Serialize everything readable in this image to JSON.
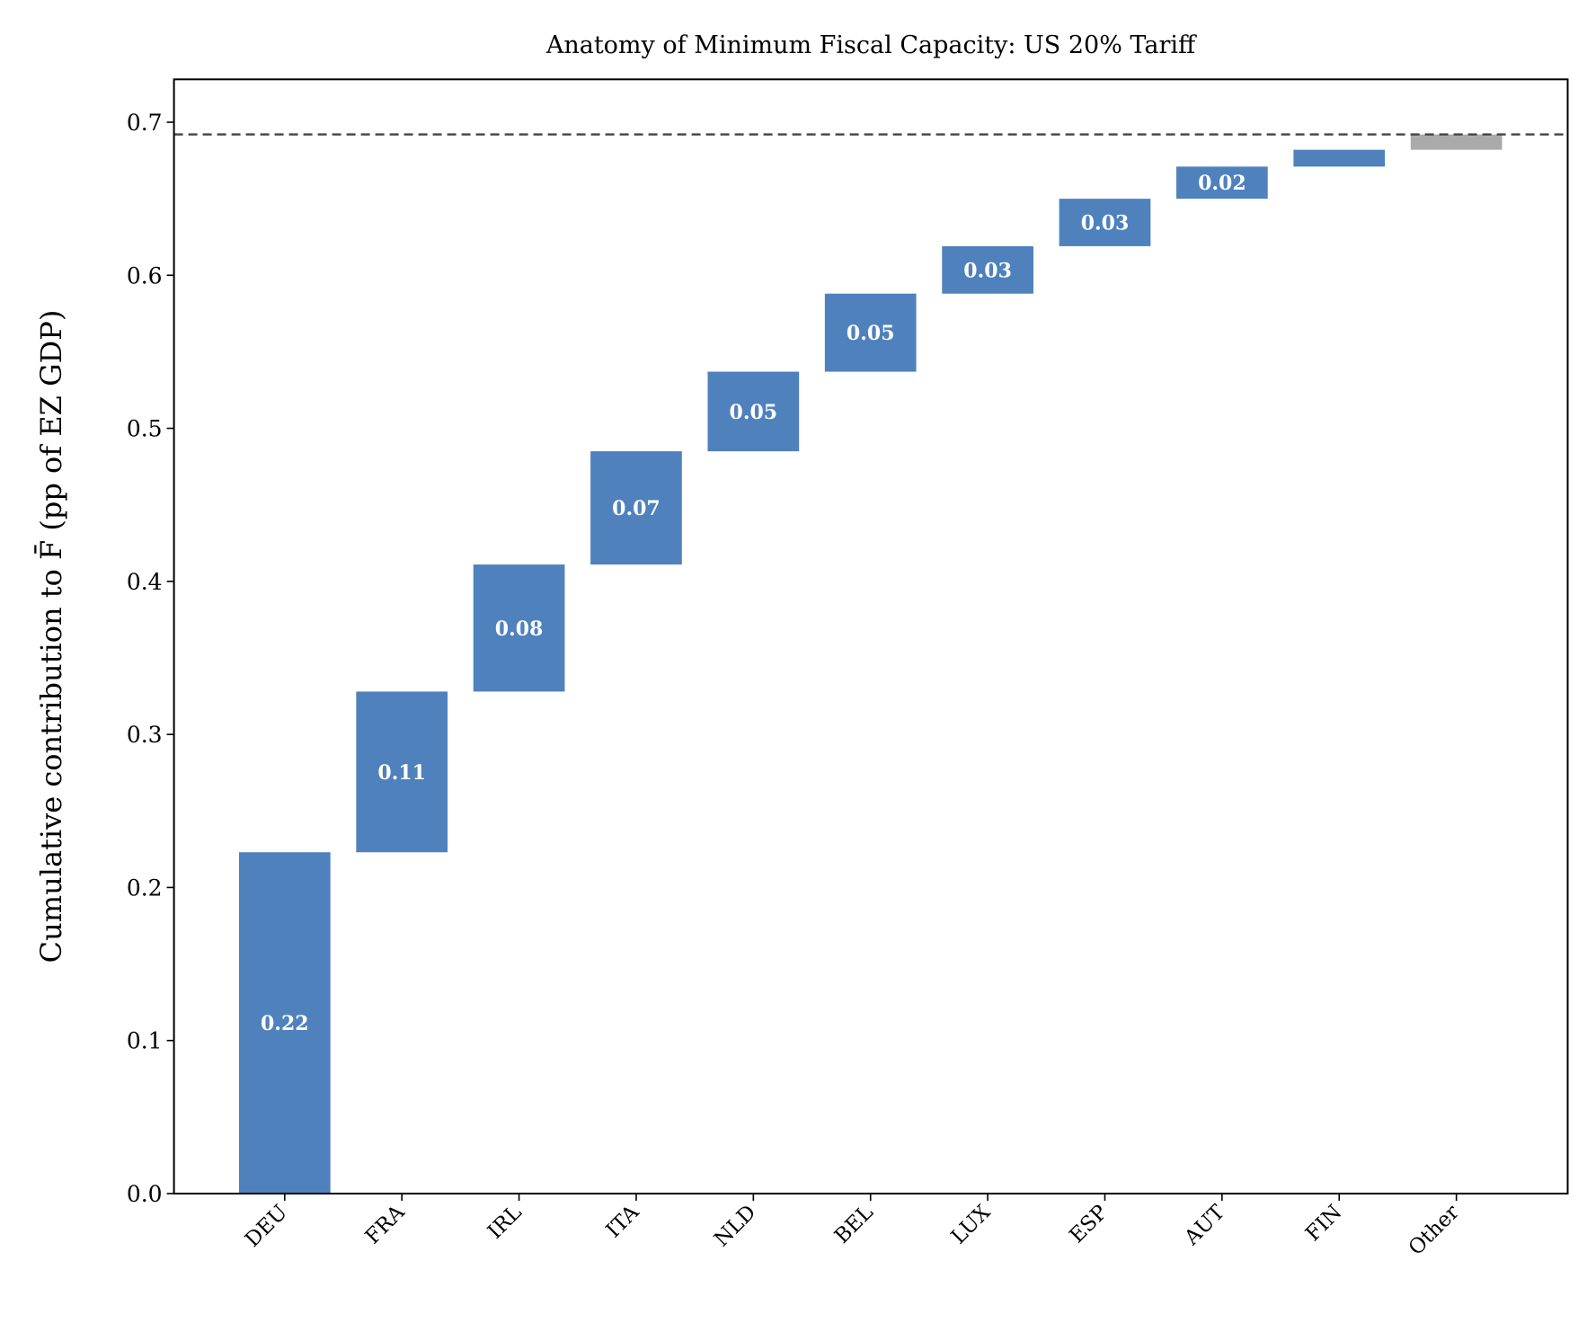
{
  "chart_data": {
    "type": "bar",
    "subtype": "waterfall",
    "title": "Anatomy of Minimum Fiscal Capacity: US 20% Tariff",
    "xlabel": "",
    "ylabel": "Cumulative contribution to F̄ (pp of EZ GDP)",
    "categories": [
      "DEU",
      "FRA",
      "IRL",
      "ITA",
      "NLD",
      "BEL",
      "LUX",
      "ESP",
      "AUT",
      "FIN",
      "Other"
    ],
    "values": [
      0.223,
      0.105,
      0.083,
      0.074,
      0.052,
      0.051,
      0.031,
      0.031,
      0.021,
      0.011,
      0.01
    ],
    "data_labels": [
      "0.22",
      "0.11",
      "0.08",
      "0.07",
      "0.05",
      "0.05",
      "0.03",
      "0.03",
      "0.02",
      "",
      ""
    ],
    "ylim": [
      0,
      0.728
    ],
    "yticks": [
      "0.0",
      "0.1",
      "0.2",
      "0.3",
      "0.4",
      "0.5",
      "0.6",
      "0.7"
    ],
    "total_line": 0.692,
    "grid": false,
    "colors": {
      "country": "#4f81bd",
      "other": "#aaaaaa",
      "total_line": "#444444"
    }
  }
}
